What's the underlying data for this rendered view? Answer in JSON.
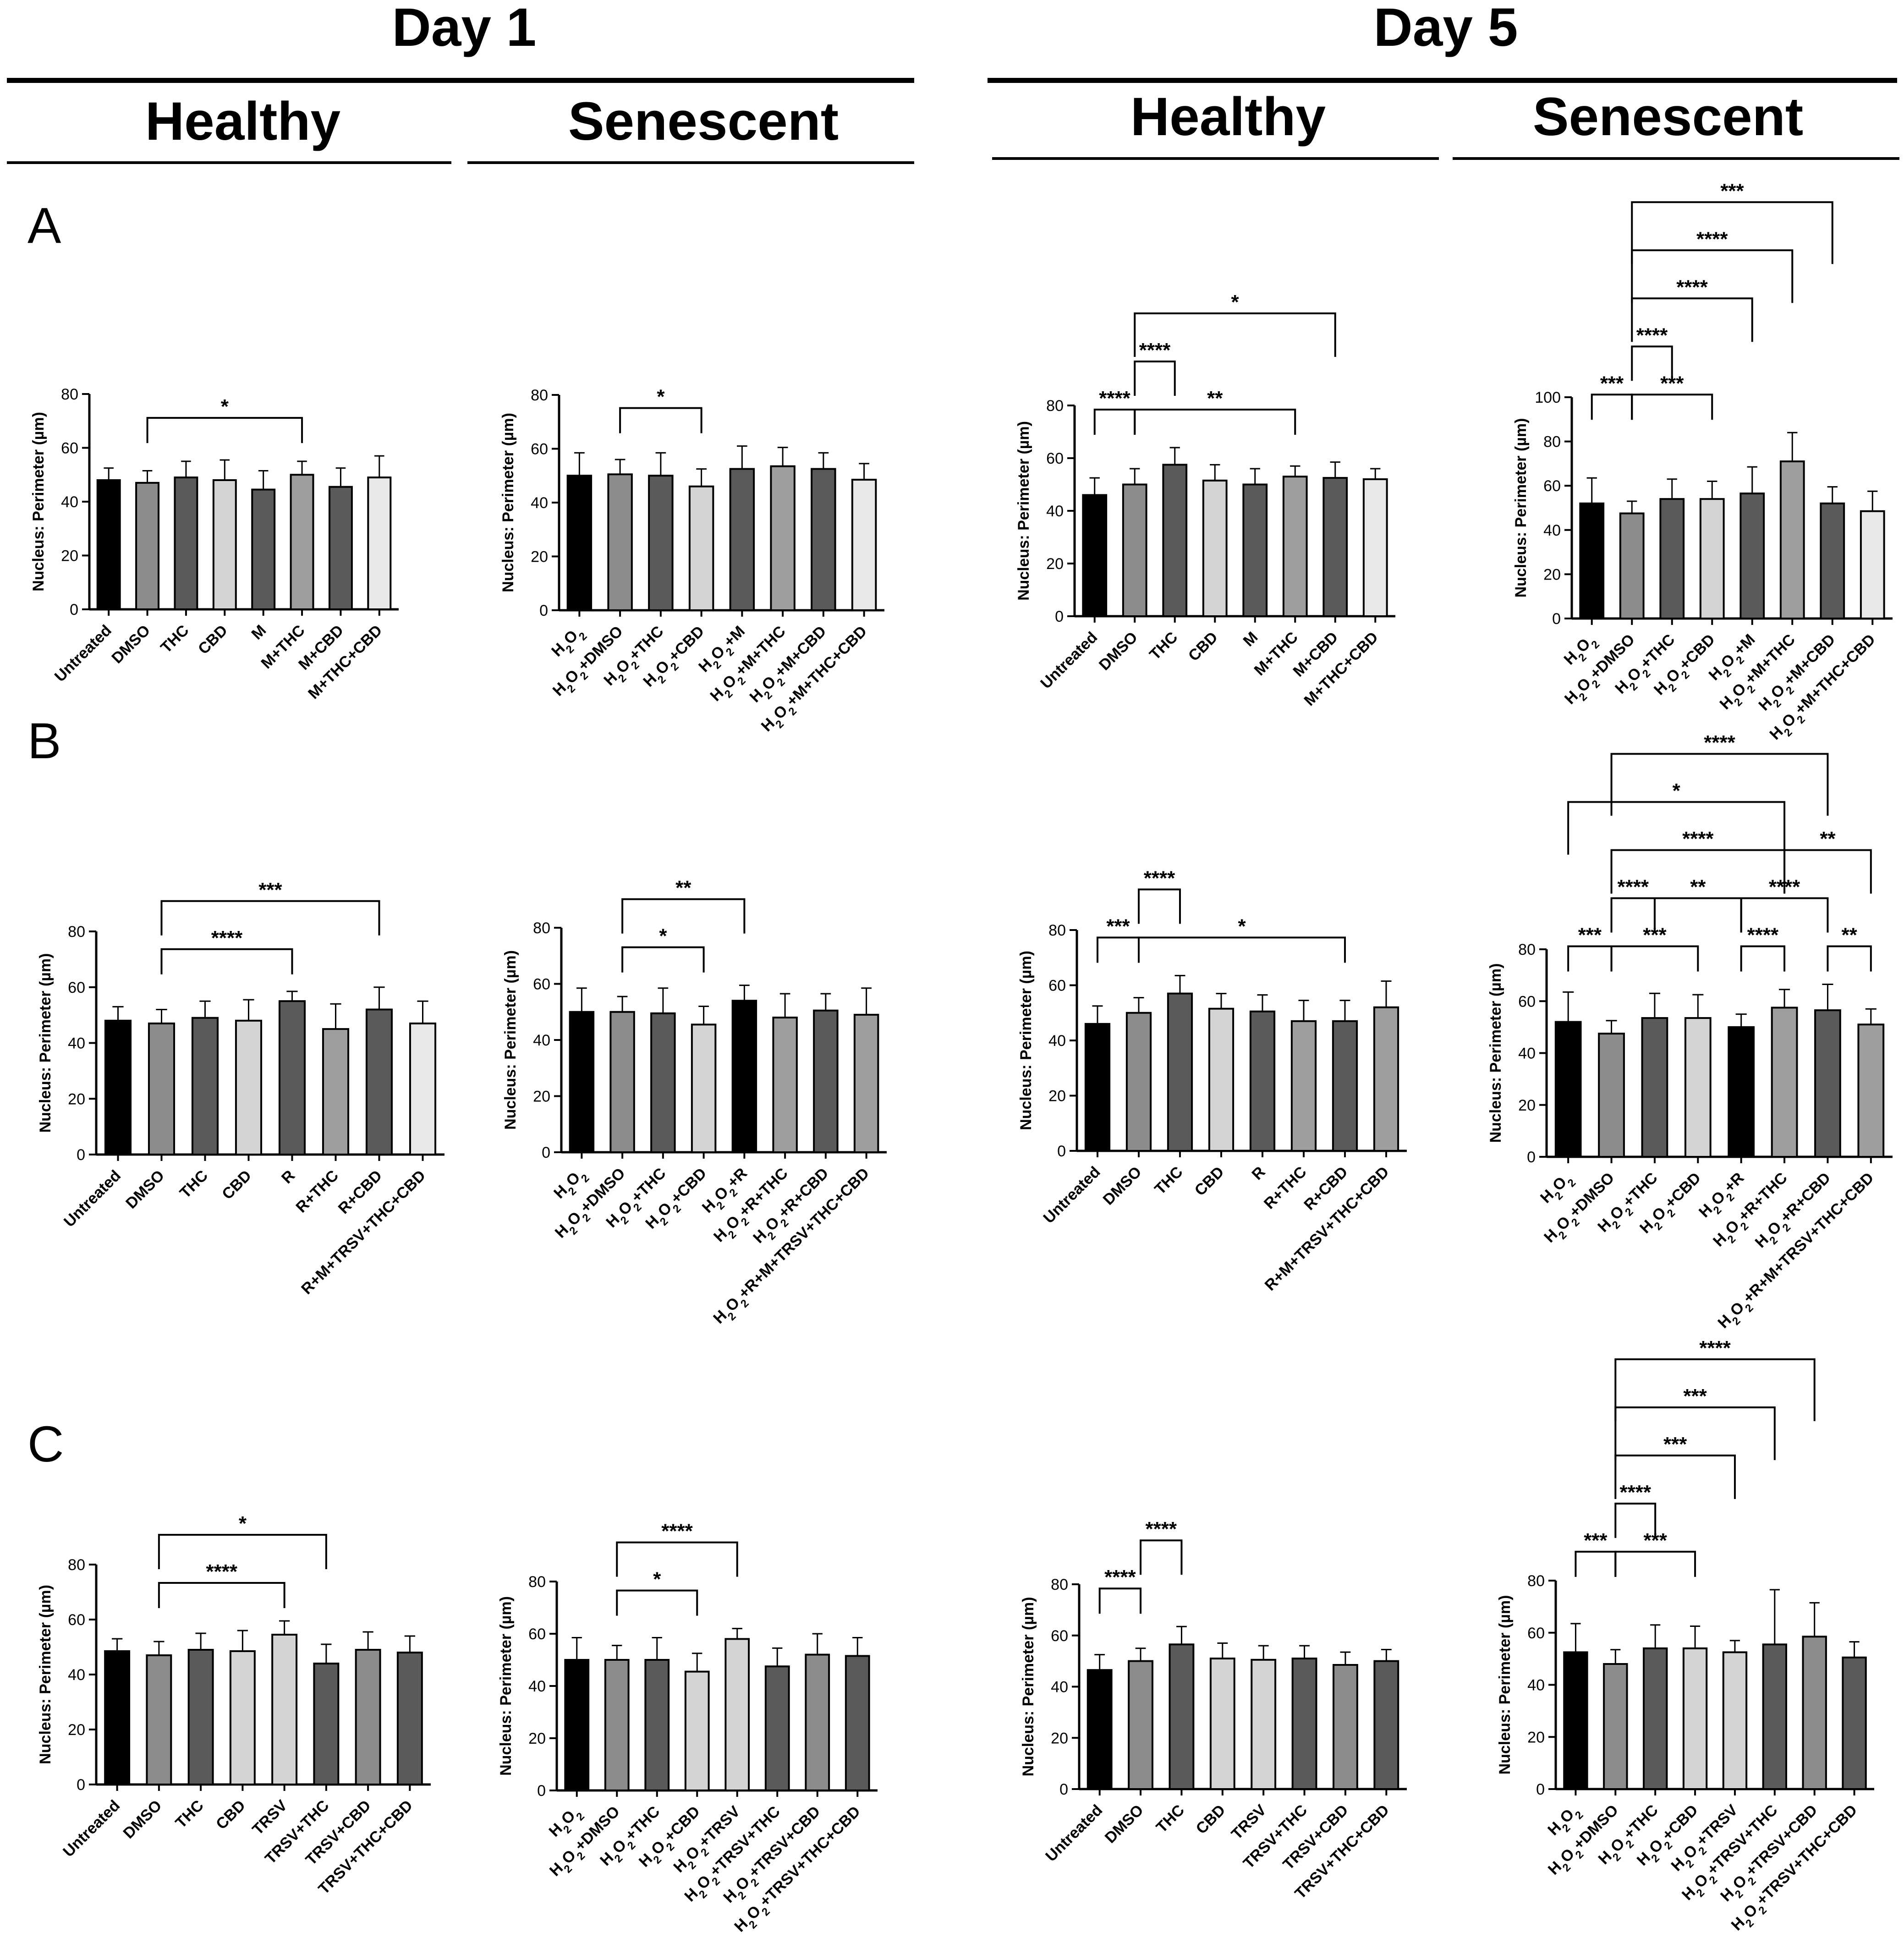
{
  "header": {
    "day1": "Day 1",
    "day5": "Day 5",
    "healthy": "Healthy",
    "senescent": "Senescent"
  },
  "row_labels": [
    "A",
    "B",
    "C"
  ],
  "colors": {
    "black": "#000000",
    "gray_med": "#8c8c8c",
    "gray_dark": "#5a5a5a",
    "gray_light": "#d4d4d4",
    "gray_xlight": "#e8e8e8",
    "gray_mid2": "#9e9e9e",
    "gray_dark2": "#4a4a4a"
  },
  "chart_data": [
    {
      "id": "A1",
      "type": "bar",
      "title": "Day 1 Healthy",
      "ylabel": "Nucleus: Perimeter (µm)",
      "ylim": [
        0,
        80
      ],
      "yticks": [
        0,
        20,
        40,
        60,
        80
      ],
      "categories": [
        "Untreated",
        "DMSO",
        "THC",
        "CBD",
        "M",
        "M+THC",
        "M+CBD",
        "M+THC+CBD"
      ],
      "values": [
        48,
        47,
        49,
        48,
        44.5,
        50,
        45.5,
        49
      ],
      "errors": [
        4.5,
        4.5,
        6,
        7.5,
        7,
        5,
        7,
        8
      ],
      "fills": [
        "black",
        "gray_med",
        "gray_dark",
        "gray_light",
        "gray_dark",
        "gray_mid2",
        "gray_dark",
        "gray_xlight"
      ],
      "brackets": [
        {
          "from": 1,
          "to": 5,
          "label": "*",
          "level": 1
        }
      ]
    },
    {
      "id": "A2",
      "type": "bar",
      "title": "Day 1 Senescent",
      "ylabel": "Nucleus: Perimeter (µm)",
      "ylim": [
        0,
        80
      ],
      "yticks": [
        0,
        20,
        40,
        60,
        80
      ],
      "categories": [
        "H2O2",
        "H2O2+DMSO",
        "H2O2+THC",
        "H2O2+CBD",
        "H2O2+M",
        "H2O2+M+THC",
        "H2O2+M+CBD",
        "H2O2+M+THC+CBD"
      ],
      "values": [
        50,
        50.5,
        50,
        46,
        52.5,
        53.5,
        52.5,
        48.5
      ],
      "errors": [
        8.5,
        5.5,
        8.5,
        6.5,
        8.5,
        7,
        6,
        6
      ],
      "fills": [
        "black",
        "gray_med",
        "gray_dark",
        "gray_light",
        "gray_dark",
        "gray_mid2",
        "gray_dark",
        "gray_xlight"
      ],
      "brackets": [
        {
          "from": 1,
          "to": 3,
          "label": "*",
          "level": 1
        }
      ]
    },
    {
      "id": "A3",
      "type": "bar",
      "title": "Day 5 Healthy",
      "ylabel": "Nucleus: Perimeter (µm)",
      "ylim": [
        0,
        80
      ],
      "yticks": [
        0,
        20,
        40,
        60,
        80
      ],
      "categories": [
        "Untreated",
        "DMSO",
        "THC",
        "CBD",
        "M",
        "M+THC",
        "M+CBD",
        "M+THC+CBD"
      ],
      "values": [
        46,
        50,
        57.5,
        51.5,
        50,
        53,
        52.5,
        52
      ],
      "errors": [
        6.5,
        6,
        6.5,
        6,
        6,
        4,
        6,
        4
      ],
      "fills": [
        "black",
        "gray_med",
        "gray_dark",
        "gray_light",
        "gray_dark",
        "gray_mid2",
        "gray_dark",
        "gray_xlight"
      ],
      "brackets": [
        {
          "from": 0,
          "to": 1,
          "label": "****",
          "level": 1
        },
        {
          "from": 1,
          "to": 5,
          "label": "**",
          "level": 1
        },
        {
          "from": 1,
          "to": 2,
          "label": "****",
          "level": 2
        },
        {
          "from": 1,
          "to": 6,
          "label": "*",
          "level": 3
        }
      ]
    },
    {
      "id": "A4",
      "type": "bar",
      "title": "Day 5 Senescent",
      "ylabel": "Nucleus: Perimeter (µm)",
      "ylim": [
        0,
        100
      ],
      "yticks": [
        0,
        20,
        40,
        60,
        80,
        100
      ],
      "categories": [
        "H2O2",
        "H2O2+DMSO",
        "H2O2+THC",
        "H2O2+CBD",
        "H2O2+M",
        "H2O2+M+THC",
        "H2O2+M+CBD",
        "H2O2+M+THC+CBD"
      ],
      "values": [
        52,
        47.5,
        54,
        54,
        56.5,
        71,
        52,
        48.5
      ],
      "errors": [
        11.5,
        5.5,
        9,
        8,
        12,
        13,
        7.5,
        9
      ],
      "fills": [
        "black",
        "gray_med",
        "gray_dark",
        "gray_light",
        "gray_dark",
        "gray_mid2",
        "gray_dark",
        "gray_xlight"
      ],
      "brackets": [
        {
          "from": 0,
          "to": 1,
          "label": "***",
          "level": 1
        },
        {
          "from": 1,
          "to": 3,
          "label": "***",
          "level": 1
        },
        {
          "from": 1,
          "to": 2,
          "label": "****",
          "level": 2
        },
        {
          "from": 1,
          "to": 4,
          "label": "****",
          "level": 3
        },
        {
          "from": 1,
          "to": 5,
          "label": "****",
          "level": 4
        },
        {
          "from": 1,
          "to": 6,
          "label": "***",
          "level": 5
        }
      ]
    },
    {
      "id": "B1",
      "type": "bar",
      "title": "Day 1 Healthy",
      "ylabel": "Nucleus: Perimeter (µm)",
      "ylim": [
        0,
        80
      ],
      "yticks": [
        0,
        20,
        40,
        60,
        80
      ],
      "categories": [
        "Untreated",
        "DMSO",
        "THC",
        "CBD",
        "R",
        "R+THC",
        "R+CBD",
        "R+M+TRSV+THC+CBD"
      ],
      "values": [
        48,
        47,
        49,
        48,
        55,
        45,
        52,
        47
      ],
      "errors": [
        5,
        5,
        6,
        7.5,
        3.5,
        9,
        8,
        8
      ],
      "fills": [
        "black",
        "gray_med",
        "gray_dark",
        "gray_light",
        "gray_dark",
        "gray_mid2",
        "gray_dark",
        "gray_xlight"
      ],
      "brackets": [
        {
          "from": 1,
          "to": 4,
          "label": "****",
          "level": 1
        },
        {
          "from": 1,
          "to": 6,
          "label": "***",
          "level": 2
        }
      ]
    },
    {
      "id": "B2",
      "type": "bar",
      "title": "Day 1 Senescent",
      "ylabel": "Nucleus: Perimeter (µm)",
      "ylim": [
        0,
        80
      ],
      "yticks": [
        0,
        20,
        40,
        60,
        80
      ],
      "categories": [
        "H2O2",
        "H2O2+DMSO",
        "H2O2+THC",
        "H2O2+CBD",
        "H2O2+R",
        "H2O2+R+THC",
        "H2O2+R+CBD",
        "H2O2+R+M+TRSV+THC+CBD"
      ],
      "values": [
        50,
        50,
        49.5,
        45.5,
        54,
        48,
        50.5,
        49
      ],
      "errors": [
        8.5,
        5.5,
        9,
        6.5,
        5.5,
        8.5,
        6,
        9.5
      ],
      "fills": [
        "black",
        "gray_med",
        "gray_dark",
        "gray_light",
        "black",
        "gray_mid2",
        "gray_dark",
        "gray_mid2"
      ],
      "brackets": [
        {
          "from": 1,
          "to": 3,
          "label": "*",
          "level": 1
        },
        {
          "from": 1,
          "to": 4,
          "label": "**",
          "level": 2
        }
      ]
    },
    {
      "id": "B3",
      "type": "bar",
      "title": "Day 5 Healthy",
      "ylabel": "Nucleus: Perimeter (µm)",
      "ylim": [
        0,
        80
      ],
      "yticks": [
        0,
        20,
        40,
        60,
        80
      ],
      "categories": [
        "Untreated",
        "DMSO",
        "THC",
        "CBD",
        "R",
        "R+THC",
        "R+CBD",
        "R+M+TRSV+THC+CBD"
      ],
      "values": [
        46,
        50,
        57,
        51.5,
        50.5,
        47,
        47,
        52
      ],
      "errors": [
        6.5,
        5.5,
        6.5,
        5.5,
        6,
        7.5,
        7.5,
        9.5
      ],
      "fills": [
        "black",
        "gray_med",
        "gray_dark",
        "gray_light",
        "gray_dark",
        "gray_mid2",
        "gray_dark",
        "gray_mid2"
      ],
      "brackets": [
        {
          "from": 0,
          "to": 1,
          "label": "***",
          "level": 1
        },
        {
          "from": 1,
          "to": 6,
          "label": "*",
          "level": 1
        },
        {
          "from": 1,
          "to": 2,
          "label": "****",
          "level": 2
        }
      ]
    },
    {
      "id": "B4",
      "type": "bar",
      "title": "Day 5 Senescent",
      "ylabel": "Nucleus: Perimeter (µm)",
      "ylim": [
        0,
        80
      ],
      "yticks": [
        0,
        20,
        40,
        60,
        80
      ],
      "categories": [
        "H2O2",
        "H2O2+DMSO",
        "H2O2+THC",
        "H2O2+CBD",
        "H2O2+R",
        "H2O2+R+THC",
        "H2O2+R+CBD",
        "H2O2+R+M+TRSV+THC+CBD"
      ],
      "values": [
        52,
        47.5,
        53.5,
        53.5,
        50,
        57.5,
        56.5,
        51
      ],
      "errors": [
        11.5,
        5,
        9.5,
        9,
        5,
        7,
        10,
        6
      ],
      "fills": [
        "black",
        "gray_med",
        "gray_dark",
        "gray_light",
        "black",
        "gray_mid2",
        "gray_dark",
        "gray_mid2"
      ],
      "brackets": [
        {
          "from": 0,
          "to": 1,
          "label": "***",
          "level": 1
        },
        {
          "from": 1,
          "to": 3,
          "label": "***",
          "level": 1
        },
        {
          "from": 4,
          "to": 5,
          "label": "****",
          "level": 1
        },
        {
          "from": 6,
          "to": 7,
          "label": "**",
          "level": 1
        },
        {
          "from": 1,
          "to": 2,
          "label": "****",
          "level": 2
        },
        {
          "from": 2,
          "to": 4,
          "label": "**",
          "level": 2
        },
        {
          "from": 4,
          "to": 6,
          "label": "****",
          "level": 2
        },
        {
          "from": 1,
          "to": 5,
          "label": "****",
          "level": 3
        },
        {
          "from": 5,
          "to": 7,
          "label": "**",
          "level": 3
        },
        {
          "from": 0,
          "to": 5,
          "label": "*",
          "level": 4
        },
        {
          "from": 1,
          "to": 6,
          "label": "****",
          "level": 5
        }
      ]
    },
    {
      "id": "C1",
      "type": "bar",
      "title": "Day 1 Healthy",
      "ylabel": "Nucleus: Perimeter (µm)",
      "ylim": [
        0,
        80
      ],
      "yticks": [
        0,
        20,
        40,
        60,
        80
      ],
      "categories": [
        "Untreated",
        "DMSO",
        "THC",
        "CBD",
        "TRSV",
        "TRSV+THC",
        "TRSV+CBD",
        "TRSV+THC+CBD"
      ],
      "values": [
        48.5,
        47,
        49,
        48.5,
        54.5,
        44,
        49,
        48
      ],
      "errors": [
        4.5,
        5,
        6,
        7.5,
        5,
        7,
        6.5,
        6
      ],
      "fills": [
        "black",
        "gray_med",
        "gray_dark",
        "gray_light",
        "gray_light",
        "gray_dark",
        "gray_med",
        "gray_dark"
      ],
      "brackets": [
        {
          "from": 1,
          "to": 4,
          "label": "****",
          "level": 1
        },
        {
          "from": 1,
          "to": 5,
          "label": "*",
          "level": 2
        }
      ]
    },
    {
      "id": "C2",
      "type": "bar",
      "title": "Day 1 Senescent",
      "ylabel": "Nucleus: Perimeter (µm)",
      "ylim": [
        0,
        80
      ],
      "yticks": [
        0,
        20,
        40,
        60,
        80
      ],
      "categories": [
        "H2O2",
        "H2O2+DMSO",
        "H2O2+THC",
        "H2O2+CBD",
        "H2O2+TRSV",
        "H2O2+TRSV+THC",
        "H2O2+TRSV+CBD",
        "H2O2+TRSV+THC+CBD"
      ],
      "values": [
        50,
        50,
        50,
        45.5,
        58,
        47.5,
        52,
        51.5
      ],
      "errors": [
        8.5,
        5.5,
        8.5,
        7,
        4,
        7,
        8,
        7
      ],
      "fills": [
        "black",
        "gray_med",
        "gray_dark",
        "gray_light",
        "gray_light",
        "gray_dark",
        "gray_med",
        "gray_dark"
      ],
      "brackets": [
        {
          "from": 1,
          "to": 3,
          "label": "*",
          "level": 1
        },
        {
          "from": 1,
          "to": 4,
          "label": "****",
          "level": 2
        }
      ]
    },
    {
      "id": "C3",
      "type": "bar",
      "title": "Day 5 Healthy",
      "ylabel": "Nucleus: Perimeter (µm)",
      "ylim": [
        0,
        80
      ],
      "yticks": [
        0,
        20,
        40,
        60,
        80
      ],
      "categories": [
        "Untreated",
        "DMSO",
        "THC",
        "CBD",
        "TRSV",
        "TRSV+THC",
        "TRSV+CBD",
        "TRSV+THC+CBD"
      ],
      "values": [
        46.5,
        50,
        56.5,
        51,
        50.5,
        51,
        48.5,
        50
      ],
      "errors": [
        6,
        5,
        7,
        6,
        5.5,
        5,
        5,
        4.5
      ],
      "fills": [
        "black",
        "gray_med",
        "gray_dark",
        "gray_light",
        "gray_light",
        "gray_dark",
        "gray_med",
        "gray_dark"
      ],
      "brackets": [
        {
          "from": 0,
          "to": 1,
          "label": "****",
          "level": 1
        },
        {
          "from": 1,
          "to": 2,
          "label": "****",
          "level": 2
        }
      ]
    },
    {
      "id": "C4",
      "type": "bar",
      "title": "Day 5 Senescent",
      "ylabel": "Nucleus: Perimeter (µm)",
      "ylim": [
        0,
        80
      ],
      "yticks": [
        0,
        20,
        40,
        60,
        80
      ],
      "categories": [
        "H2O2",
        "H2O2+DMSO",
        "H2O2+THC",
        "H2O2+CBD",
        "H2O2+TRSV",
        "H2O2+TRSV+THC",
        "H2O2+TRSV+CBD",
        "H2O2+TRSV+THC+CBD"
      ],
      "values": [
        52.5,
        48,
        54,
        54,
        52.5,
        55.5,
        58.5,
        50.5
      ],
      "errors": [
        11,
        5.5,
        9,
        8.5,
        4.5,
        21,
        13,
        6
      ],
      "fills": [
        "black",
        "gray_med",
        "gray_dark",
        "gray_light",
        "gray_light",
        "gray_dark",
        "gray_med",
        "gray_dark"
      ],
      "brackets": [
        {
          "from": 0,
          "to": 1,
          "label": "***",
          "level": 1
        },
        {
          "from": 1,
          "to": 3,
          "label": "***",
          "level": 1
        },
        {
          "from": 1,
          "to": 2,
          "label": "****",
          "level": 2
        },
        {
          "from": 1,
          "to": 4,
          "label": "***",
          "level": 3
        },
        {
          "from": 1,
          "to": 5,
          "label": "***",
          "level": 4
        },
        {
          "from": 1,
          "to": 6,
          "label": "****",
          "level": 5
        }
      ]
    }
  ]
}
